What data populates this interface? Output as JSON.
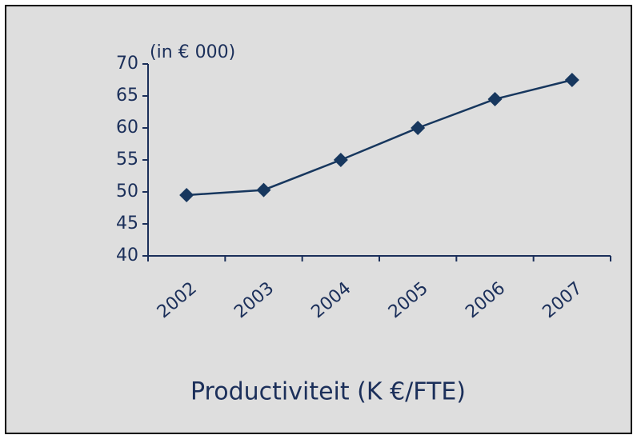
{
  "chart_data": {
    "type": "line",
    "title": "Productiviteit (K €/FTE)",
    "y_axis_label": "(in € 000)",
    "categories": [
      "2002",
      "2003",
      "2004",
      "2005",
      "2006",
      "2007"
    ],
    "series": [
      {
        "name": "Productiviteit",
        "color": "#17375e",
        "values": [
          49.5,
          50.3,
          55,
          60,
          64.5,
          67.5
        ]
      }
    ],
    "ylim": [
      40,
      70
    ],
    "yticks": [
      40,
      45,
      50,
      55,
      60,
      65,
      70
    ],
    "grid": false
  }
}
